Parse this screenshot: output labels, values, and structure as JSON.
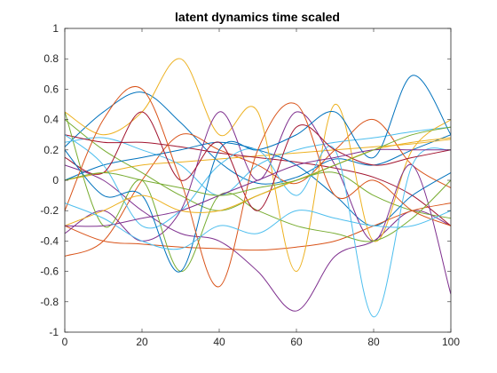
{
  "chart_data": {
    "type": "line",
    "title": "latent dynamics time scaled",
    "xlabel": "",
    "ylabel": "",
    "xlim": [
      0,
      100
    ],
    "ylim": [
      -1,
      1
    ],
    "x_ticks": [
      0,
      20,
      40,
      60,
      80,
      100
    ],
    "y_ticks": [
      -1,
      -0.8,
      -0.6,
      -0.4,
      -0.2,
      0,
      0.2,
      0.4,
      0.6,
      0.8,
      1
    ],
    "x_tick_labels": [
      "0",
      "20",
      "40",
      "60",
      "80",
      "100"
    ],
    "y_tick_labels": [
      "-1",
      "-0.8",
      "-0.6",
      "-0.4",
      "-0.2",
      "0",
      "0.2",
      "0.4",
      "0.6",
      "0.8",
      "1"
    ],
    "grid": false,
    "legend": "none",
    "series": [
      {
        "color": "#0072BD",
        "x": [
          0,
          10,
          20,
          30,
          40,
          50,
          60,
          70,
          80,
          90,
          100
        ],
        "y": [
          0.22,
          0.45,
          0.58,
          0.38,
          0.12,
          -0.02,
          0.02,
          0.14,
          0.1,
          0.2,
          0.3
        ]
      },
      {
        "color": "#D95319",
        "x": [
          0,
          10,
          20,
          30,
          40,
          50,
          60,
          70,
          80,
          90,
          100
        ],
        "y": [
          -0.5,
          -0.4,
          0.0,
          0.3,
          0.2,
          0.1,
          -0.02,
          0.2,
          0.4,
          0.1,
          -0.05
        ]
      },
      {
        "color": "#EDB120",
        "x": [
          0,
          10,
          20,
          30,
          40,
          50,
          60,
          70,
          80,
          90,
          100
        ],
        "y": [
          0.0,
          0.05,
          0.1,
          0.12,
          0.14,
          0.16,
          0.18,
          0.2,
          0.22,
          0.24,
          0.27
        ]
      },
      {
        "color": "#7E2F8E",
        "x": [
          0,
          10,
          20,
          30,
          40,
          50,
          60,
          70,
          80,
          90,
          100
        ],
        "y": [
          0.1,
          0.0,
          -0.2,
          -0.35,
          -0.4,
          -0.6,
          -0.86,
          -0.5,
          -0.4,
          -0.2,
          -0.3
        ]
      },
      {
        "color": "#77AC30",
        "x": [
          0,
          10,
          20,
          30,
          40,
          50,
          60,
          70,
          80,
          90,
          100
        ],
        "y": [
          0.4,
          0.2,
          0.05,
          -0.1,
          -0.2,
          -0.1,
          0.0,
          0.05,
          -0.1,
          -0.2,
          -0.25
        ]
      },
      {
        "color": "#4DBEEE",
        "x": [
          0,
          10,
          20,
          30,
          40,
          50,
          60,
          70,
          80,
          90,
          100
        ],
        "y": [
          0.25,
          0.28,
          0.2,
          0.1,
          -0.1,
          0.1,
          0.2,
          0.25,
          0.28,
          0.32,
          0.35
        ]
      },
      {
        "color": "#A2142F",
        "x": [
          0,
          10,
          20,
          30,
          40,
          50,
          60,
          70,
          80,
          90,
          100
        ],
        "y": [
          0.3,
          0.25,
          0.25,
          0.22,
          0.18,
          0.15,
          0.12,
          0.08,
          0.02,
          -0.1,
          -0.3
        ]
      },
      {
        "color": "#0072BD",
        "x": [
          0,
          10,
          20,
          30,
          40,
          50,
          60,
          70,
          80,
          90,
          100
        ],
        "y": [
          0.0,
          0.1,
          0.15,
          0.2,
          0.25,
          0.2,
          0.1,
          -0.1,
          -0.3,
          -0.1,
          0.05
        ]
      },
      {
        "color": "#D95319",
        "x": [
          0,
          10,
          20,
          30,
          40,
          50,
          60,
          70,
          80,
          90,
          100
        ],
        "y": [
          -0.3,
          -0.4,
          -0.42,
          -0.44,
          -0.45,
          -0.46,
          -0.44,
          -0.4,
          -0.3,
          -0.2,
          -0.15
        ]
      },
      {
        "color": "#EDB120",
        "x": [
          0,
          10,
          20,
          30,
          40,
          50,
          60,
          70,
          80,
          90,
          100
        ],
        "y": [
          0.45,
          0.3,
          0.45,
          0.8,
          0.3,
          0.45,
          -0.6,
          0.5,
          -0.4,
          0.2,
          0.4
        ]
      },
      {
        "color": "#7E2F8E",
        "x": [
          0,
          10,
          20,
          30,
          40,
          50,
          60,
          70,
          80,
          90,
          100
        ],
        "y": [
          -0.35,
          -0.2,
          -0.4,
          -0.2,
          0.45,
          0.0,
          0.45,
          0.1,
          -0.4,
          0.1,
          -0.75
        ]
      },
      {
        "color": "#77AC30",
        "x": [
          0,
          10,
          20,
          30,
          40,
          50,
          60,
          70,
          80,
          90,
          100
        ],
        "y": [
          0.45,
          -0.3,
          0.0,
          -0.6,
          -0.1,
          -0.2,
          -0.3,
          -0.35,
          -0.4,
          -0.25,
          0.0
        ]
      },
      {
        "color": "#4DBEEE",
        "x": [
          0,
          10,
          20,
          30,
          40,
          50,
          60,
          70,
          80,
          90,
          100
        ],
        "y": [
          0.3,
          0.1,
          -0.3,
          -0.2,
          0.1,
          0.2,
          -0.1,
          0.2,
          -0.9,
          0.1,
          0.2
        ]
      },
      {
        "color": "#A2142F",
        "x": [
          0,
          10,
          20,
          30,
          40,
          50,
          60,
          70,
          80,
          90,
          100
        ],
        "y": [
          0.15,
          0.05,
          0.45,
          0.0,
          0.25,
          -0.2,
          0.35,
          0.2,
          0.1,
          0.15,
          0.2
        ]
      },
      {
        "color": "#0072BD",
        "x": [
          0,
          10,
          20,
          30,
          40,
          50,
          60,
          70,
          80,
          90,
          100
        ],
        "y": [
          0.2,
          -0.1,
          -0.1,
          -0.6,
          0.2,
          0.2,
          0.3,
          0.45,
          0.15,
          0.69,
          0.3
        ]
      },
      {
        "color": "#D95319",
        "x": [
          0,
          10,
          20,
          30,
          40,
          50,
          60,
          70,
          80,
          90,
          100
        ],
        "y": [
          -0.2,
          0.4,
          0.6,
          0.0,
          -0.7,
          0.2,
          0.5,
          -0.1,
          0.0,
          -0.2,
          -0.3
        ]
      },
      {
        "color": "#EDB120",
        "x": [
          0,
          10,
          20,
          30,
          40,
          50,
          60,
          70,
          80,
          90,
          100
        ],
        "y": [
          -0.3,
          -0.2,
          -0.1,
          -0.2,
          -0.2,
          -0.1,
          0.0,
          0.1,
          0.2,
          0.25,
          0.28
        ]
      },
      {
        "color": "#7E2F8E",
        "x": [
          0,
          10,
          20,
          30,
          40,
          50,
          60,
          70,
          80,
          90,
          100
        ],
        "y": [
          -0.3,
          -0.3,
          -0.25,
          -0.2,
          -0.1,
          0.0,
          0.1,
          0.15,
          0.2,
          0.2,
          0.2
        ]
      },
      {
        "color": "#77AC30",
        "x": [
          0,
          10,
          20,
          30,
          40,
          50,
          60,
          70,
          80,
          90,
          100
        ],
        "y": [
          0.0,
          0.05,
          0.0,
          -0.05,
          -0.1,
          -0.05,
          0.0,
          0.1,
          0.2,
          0.3,
          0.35
        ]
      },
      {
        "color": "#4DBEEE",
        "x": [
          0,
          10,
          20,
          30,
          40,
          50,
          60,
          70,
          80,
          90,
          100
        ],
        "y": [
          -0.15,
          -0.25,
          -0.4,
          -0.45,
          -0.3,
          -0.35,
          -0.2,
          -0.25,
          -0.3,
          -0.3,
          -0.2
        ]
      }
    ]
  }
}
